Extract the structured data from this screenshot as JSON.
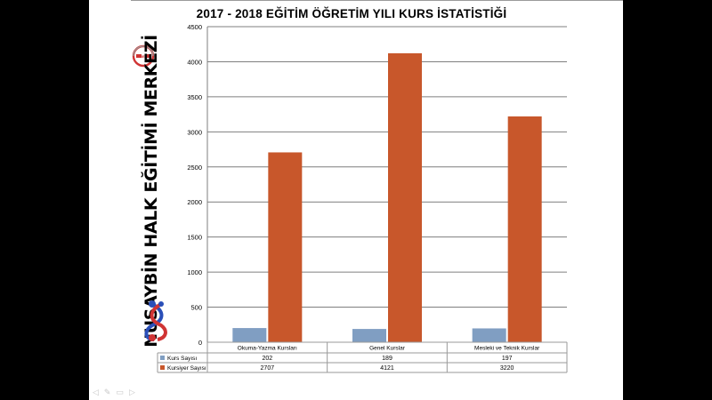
{
  "logo_text": "MEB",
  "side_title": "NUSAYBİN HALK EĞİTİMİ MERKEZİ",
  "colors": {
    "series1": "#809ec2",
    "series2": "#c8572b",
    "grid": "#7f7f7f"
  },
  "chart_data": {
    "type": "bar",
    "title": "2017 - 2018 EĞİTİM ÖĞRETİM YILI KURS İSTATİSTİĞİ",
    "categories": [
      "Okuma-Yazma  Kursları",
      "Genel Kurslar",
      "Mesleki ve Teknik Kurslar"
    ],
    "series": [
      {
        "name": "Kurs Sayısı",
        "values": [
          202,
          189,
          197
        ],
        "display": [
          "202",
          "189",
          "197"
        ]
      },
      {
        "name": "Kursiyer Sayısı",
        "values": [
          2707,
          4121,
          3220
        ],
        "display": [
          "2707",
          "4121",
          "3220"
        ]
      }
    ],
    "ylim": [
      0,
      4500
    ],
    "yticks": [
      0,
      500,
      1000,
      1500,
      2000,
      2500,
      3000,
      3500,
      4000,
      4500
    ],
    "ytick_labels": [
      "0",
      "500",
      "1000",
      "1500",
      "2000",
      "2500",
      "3000",
      "3500",
      "4000",
      "4500"
    ],
    "grid": true,
    "legend": "data-table"
  },
  "slide_icons": [
    "◁",
    "✎",
    "▭",
    "▷"
  ]
}
